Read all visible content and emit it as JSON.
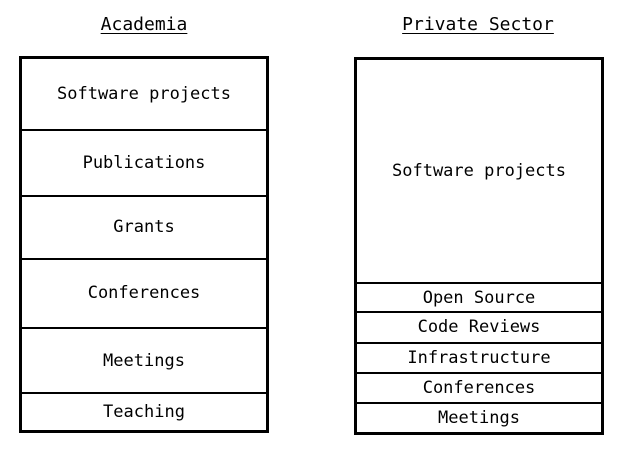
{
  "academia": {
    "title": "Academia",
    "blocks": [
      {
        "label": "Software projects",
        "share": 72
      },
      {
        "label": "Publications",
        "share": 66
      },
      {
        "label": "Grants",
        "share": 63
      },
      {
        "label": "Conferences",
        "share": 70
      },
      {
        "label": "Meetings",
        "share": 65
      },
      {
        "label": "Teaching",
        "share": 37
      }
    ]
  },
  "private_sector": {
    "title": "Private Sector",
    "blocks": [
      {
        "label": "Software projects",
        "share": 229
      },
      {
        "label": "Open Source",
        "share": 28
      },
      {
        "label": "Code Reviews",
        "share": 29
      },
      {
        "label": "Infrastructure",
        "share": 29
      },
      {
        "label": "Conferences",
        "share": 29
      },
      {
        "label": "Meetings",
        "share": 29
      }
    ]
  }
}
